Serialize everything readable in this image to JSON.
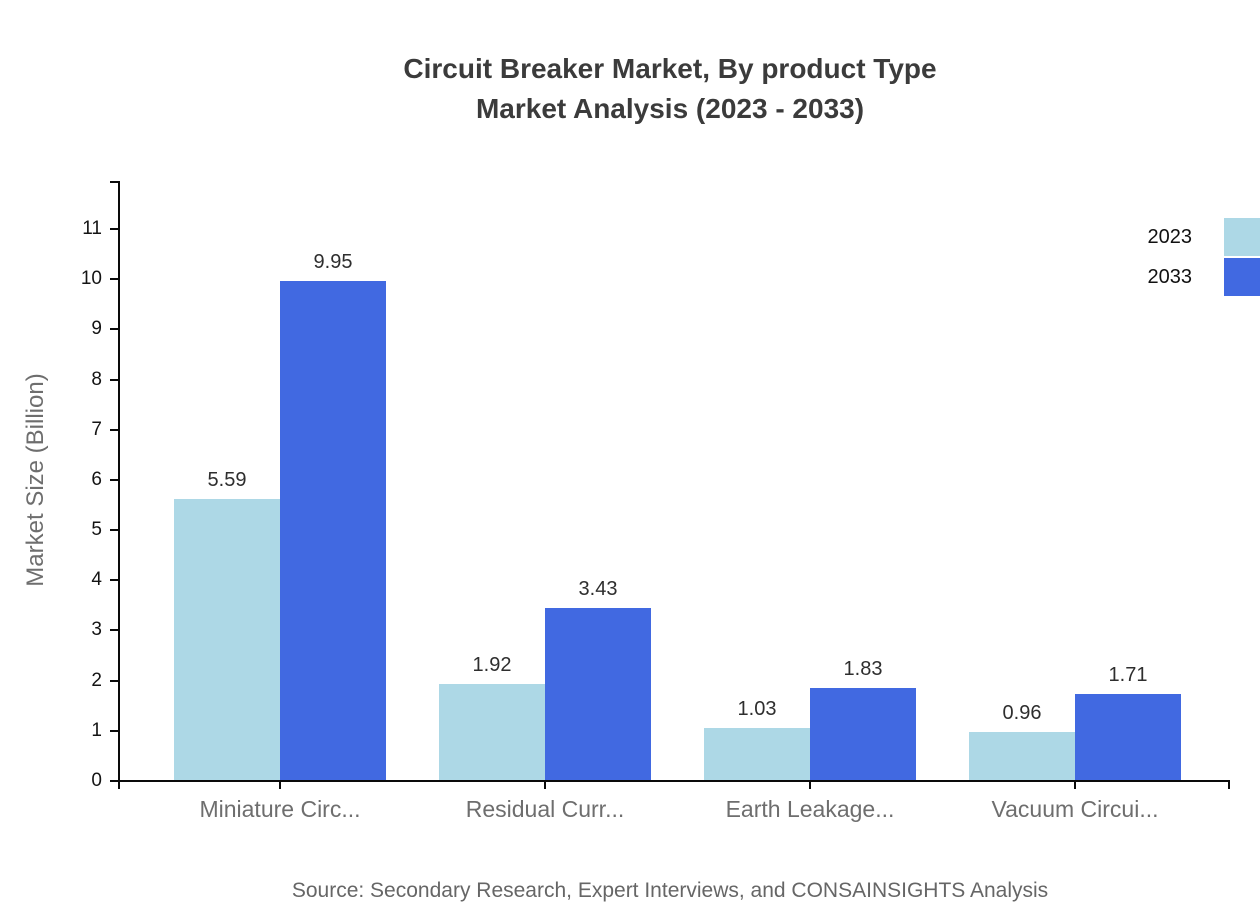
{
  "title": {
    "line1": "Circuit Breaker Market, By product Type",
    "line2": "Market Analysis (2023 - 2033)"
  },
  "source_note": "Source: Secondary Research, Expert Interviews, and CONSAINSIGHTS Analysis",
  "legend": {
    "items": [
      {
        "label": "2023",
        "color": "#ADD8E6"
      },
      {
        "label": "2033",
        "color": "#4169E1"
      }
    ]
  },
  "colors": {
    "series_2023": "#ADD8E6",
    "series_2033": "#4169E1",
    "axis": "#0a0a0a",
    "title_text": "#3b3b3b",
    "muted_text": "#6e6e6e"
  },
  "chart_data": {
    "type": "bar",
    "title": "Circuit Breaker Market, By product Type Market Analysis (2023 - 2033)",
    "categories": [
      "Miniature Circ...",
      "Residual Curr...",
      "Earth Leakage...",
      "Vacuum Circui..."
    ],
    "series": [
      {
        "name": "2023",
        "color": "#ADD8E6",
        "values": [
          5.59,
          1.92,
          1.03,
          0.96
        ]
      },
      {
        "name": "2033",
        "color": "#4169E1",
        "values": [
          9.95,
          3.43,
          1.83,
          1.71
        ]
      }
    ],
    "value_labels": [
      [
        "5.59",
        "9.95"
      ],
      [
        "1.92",
        "3.43"
      ],
      [
        "1.03",
        "1.83"
      ],
      [
        "0.96",
        "1.71"
      ]
    ],
    "xlabel": "",
    "ylabel": "Market Size (Billion)",
    "y_ticks": [
      0,
      1,
      2,
      3,
      4,
      5,
      6,
      7,
      8,
      9,
      10,
      11
    ],
    "ylim": [
      0,
      11.95
    ],
    "grid": false,
    "legend_position": "top-right"
  }
}
